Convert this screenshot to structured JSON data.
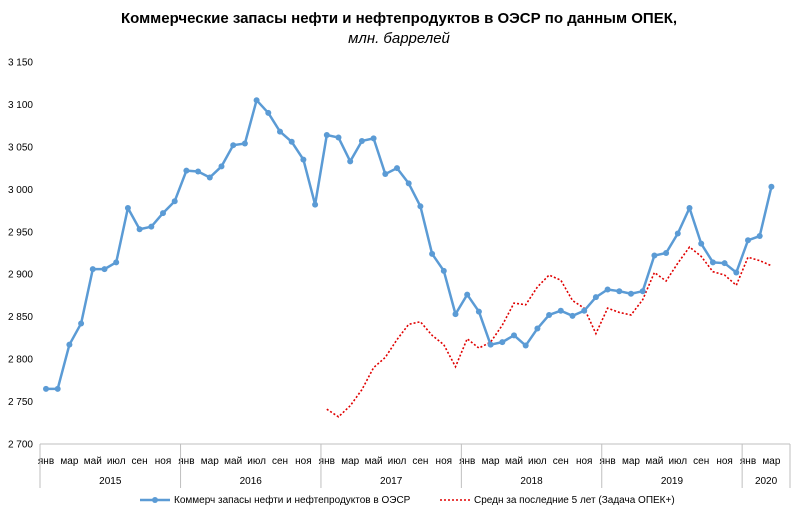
{
  "chart_data": {
    "type": "line",
    "title": "Коммерческие  запасы  нефти  и  нефтепродуктов  в  ОЭСР по  данным  ОПЕК,",
    "subtitle": "млн. баррелей",
    "xlabel": "",
    "ylabel": "",
    "ylim": [
      2700,
      3150
    ],
    "yticks": [
      2700,
      2750,
      2800,
      2850,
      2900,
      2950,
      3000,
      3050,
      3100,
      3150
    ],
    "ytick_labels": [
      "2 700",
      "2 750",
      "2 800",
      "2 850",
      "2 900",
      "2 950",
      "3 000",
      "3 050",
      "3 100",
      "3 150"
    ],
    "month_labels": [
      "янв",
      "мар",
      "май",
      "июл",
      "сен",
      "ноя"
    ],
    "months_count": 63,
    "years": [
      {
        "label": "2015",
        "months": 12
      },
      {
        "label": "2016",
        "months": 12
      },
      {
        "label": "2017",
        "months": 12
      },
      {
        "label": "2018",
        "months": 12
      },
      {
        "label": "2019",
        "months": 12
      },
      {
        "label": "2020",
        "months": 3
      }
    ],
    "grid": false,
    "legend_position": "bottom",
    "series": [
      {
        "name": "Коммерч запасы нефти и нефтепродуктов в ОЭСР",
        "color": "#5b9bd5",
        "style": "solid-markers",
        "values": [
          2765,
          2765,
          2817,
          2842,
          2906,
          2906,
          2914,
          2978,
          2953,
          2956,
          2972,
          2986,
          3022,
          3021,
          3014,
          3027,
          3052,
          3054,
          3105,
          3090,
          3068,
          3056,
          3035,
          2982,
          3064,
          3061,
          3033,
          3057,
          3060,
          3018,
          3025,
          3007,
          2980,
          2924,
          2904,
          2853,
          2876,
          2856,
          2817,
          2820,
          2828,
          2816,
          2836,
          2852,
          2857,
          2851,
          2857,
          2873,
          2882,
          2880,
          2877,
          2880,
          2922,
          2925,
          2948,
          2978,
          2936,
          2914,
          2913,
          2902,
          2940,
          2945,
          3003
        ]
      },
      {
        "name": "Средн за последние 5 лет (Задача  ОПЕК+)",
        "color": "#e00000",
        "style": "dotted",
        "start_index": 24,
        "values": [
          2741,
          2732,
          2745,
          2764,
          2790,
          2802,
          2823,
          2841,
          2844,
          2828,
          2817,
          2791,
          2824,
          2813,
          2820,
          2840,
          2866,
          2864,
          2885,
          2899,
          2893,
          2869,
          2860,
          2830,
          2860,
          2855,
          2852,
          2870,
          2902,
          2892,
          2913,
          2932,
          2921,
          2903,
          2899,
          2887,
          2920,
          2916,
          2910
        ]
      }
    ]
  }
}
